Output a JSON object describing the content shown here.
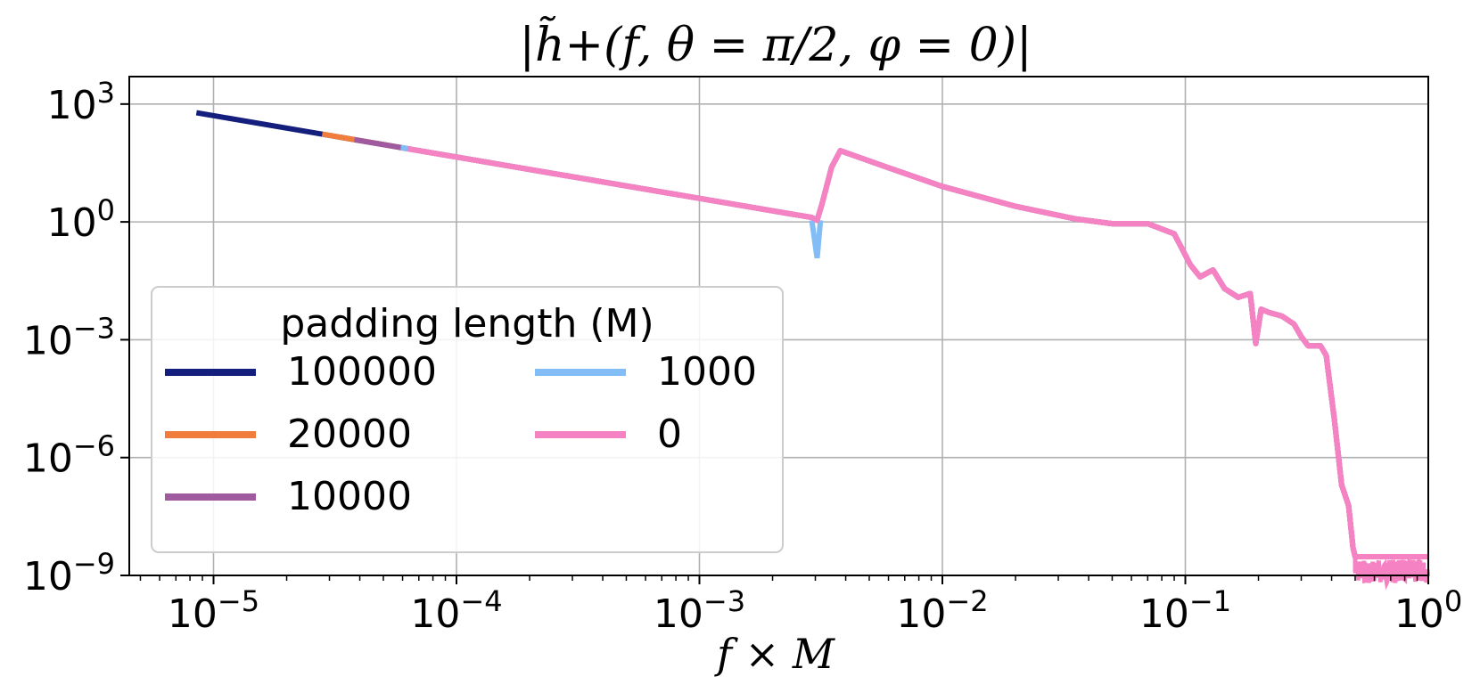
{
  "chart_data": {
    "type": "line",
    "title": "|h̃+(f, θ = π/2, φ = 0)|",
    "xlabel": "f × M",
    "ylabel": "",
    "x_scale": "log",
    "y_scale": "log",
    "xlim": [
      4.5e-06,
      1.0
    ],
    "ylim": [
      1e-09,
      5000.0
    ],
    "grid": true,
    "x_ticks": [
      {
        "value": 1e-05,
        "base": "10",
        "exp": "−5"
      },
      {
        "value": 0.0001,
        "base": "10",
        "exp": "−4"
      },
      {
        "value": 0.001,
        "base": "10",
        "exp": "−3"
      },
      {
        "value": 0.01,
        "base": "10",
        "exp": "−2"
      },
      {
        "value": 0.1,
        "base": "10",
        "exp": "−1"
      },
      {
        "value": 1,
        "base": "10",
        "exp": "0"
      }
    ],
    "y_ticks": [
      {
        "value": 1000.0,
        "base": "10",
        "exp": "3"
      },
      {
        "value": 1,
        "base": "10",
        "exp": "0"
      },
      {
        "value": 0.001,
        "base": "10",
        "exp": "−3"
      },
      {
        "value": 1e-06,
        "base": "10",
        "exp": "−6"
      },
      {
        "value": 1e-09,
        "base": "10",
        "exp": "−9"
      }
    ],
    "legend": {
      "title": "padding length (M)",
      "placement": "lower-left",
      "columns": 2
    },
    "series": [
      {
        "name": "100000",
        "color": "#141e7d",
        "x_start": 8.5e-06
      },
      {
        "name": "20000",
        "color": "#f07d3c",
        "x_start": 2.8e-05
      },
      {
        "name": "10000",
        "color": "#a05aa0",
        "x_start": 3.8e-05
      },
      {
        "name": "1000",
        "color": "#82bef5",
        "x_start": 5.9e-05
      },
      {
        "name": "0",
        "color": "#f582c3",
        "x_start": 6.3e-05
      }
    ],
    "curve": {
      "x": [
        8.5e-06,
        0.0027,
        0.0029,
        0.00305,
        0.0032,
        0.0035,
        0.0038,
        0.006,
        0.01,
        0.02,
        0.035,
        0.05,
        0.07,
        0.09,
        0.105,
        0.115,
        0.13,
        0.145,
        0.165,
        0.185,
        0.195,
        0.205,
        0.22,
        0.25,
        0.28,
        0.3,
        0.32,
        0.36,
        0.38,
        0.41,
        0.44,
        0.47,
        0.49,
        0.5,
        1.0
      ],
      "y": [
        600,
        1.4,
        1.3,
        1.1,
        3,
        25,
        65,
        24,
        8,
        2.5,
        1.2,
        0.9,
        0.9,
        0.5,
        0.08,
        0.04,
        0.06,
        0.02,
        0.012,
        0.015,
        0.0008,
        0.006,
        0.005,
        0.004,
        0.0025,
        0.0012,
        0.0007,
        0.0007,
        0.0004,
        1e-05,
        2e-07,
        6e-08,
        5e-09,
        3e-09,
        3e-09
      ]
    },
    "dip_1000": {
      "x": [
        0.0029,
        0.00305,
        0.00315
      ],
      "y": [
        1.1,
        0.12,
        1.1
      ]
    }
  }
}
